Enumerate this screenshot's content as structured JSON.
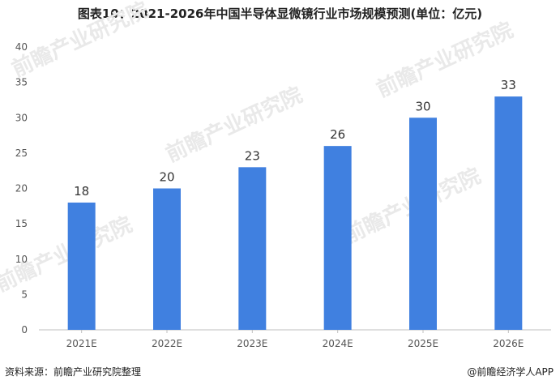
{
  "title": "图表10：2021-2026年中国半导体显微镜行业市场规模预测(单位：亿元)",
  "source": "资料来源：前瞻产业研究院整理",
  "brand": "@前瞻经济学人APP",
  "watermark": "前瞻产业研究院",
  "colors": {
    "bar": "#4080e0",
    "axis": "#bfbfbf",
    "text": "#333333"
  },
  "chart_data": {
    "type": "bar",
    "categories": [
      "2021E",
      "2022E",
      "2023E",
      "2024E",
      "2025E",
      "2026E"
    ],
    "values": [
      18,
      20,
      23,
      26,
      30,
      33
    ],
    "ylim": [
      0,
      40
    ],
    "yticks": [
      0,
      5,
      10,
      15,
      20,
      25,
      30,
      35,
      40
    ],
    "grid": false,
    "legend": "none",
    "xlabel": "",
    "ylabel": ""
  }
}
